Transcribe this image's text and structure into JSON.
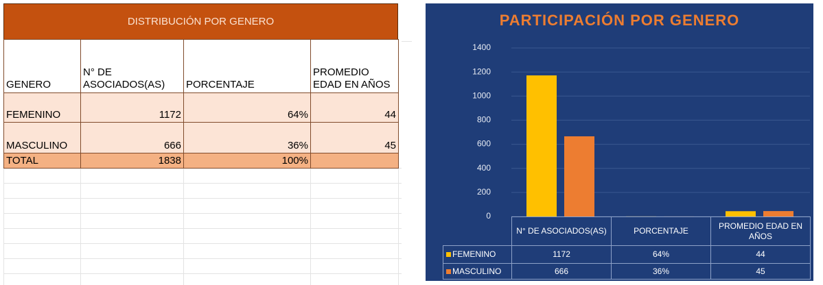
{
  "table": {
    "title": "DISTRIBUCIÓN POR GENERO",
    "headers": [
      "GENERO",
      "N° DE ASOCIADOS(AS)",
      "PORCENTAJE",
      "PROMEDIO EDAD EN AÑOS"
    ],
    "rows": [
      [
        "FEMENINO",
        "1172",
        "64%",
        "44"
      ],
      [
        "MASCULINO",
        "666",
        "36%",
        "45"
      ],
      [
        "TOTAL",
        "1838",
        "100%",
        null
      ]
    ]
  },
  "chart_data": {
    "type": "bar",
    "title": "PARTICIPACIÓN POR GENERO",
    "categories": [
      "N° DE ASOCIADOS(AS)",
      "PORCENTAJE",
      "PROMEDIO EDAD EN AÑOS"
    ],
    "series": [
      {
        "name": "FEMENINO",
        "color": "#ffc000",
        "values": [
          1172,
          0.64,
          44
        ],
        "value_labels": [
          "1172",
          "64%",
          "44"
        ]
      },
      {
        "name": "MASCULINO",
        "color": "#ed7d31",
        "values": [
          666,
          0.36,
          45
        ],
        "value_labels": [
          "666",
          "36%",
          "45"
        ]
      }
    ],
    "ylim": [
      0,
      1400
    ],
    "yticks": [
      0,
      200,
      400,
      600,
      800,
      1000,
      1200,
      1400
    ],
    "grid": true
  }
}
